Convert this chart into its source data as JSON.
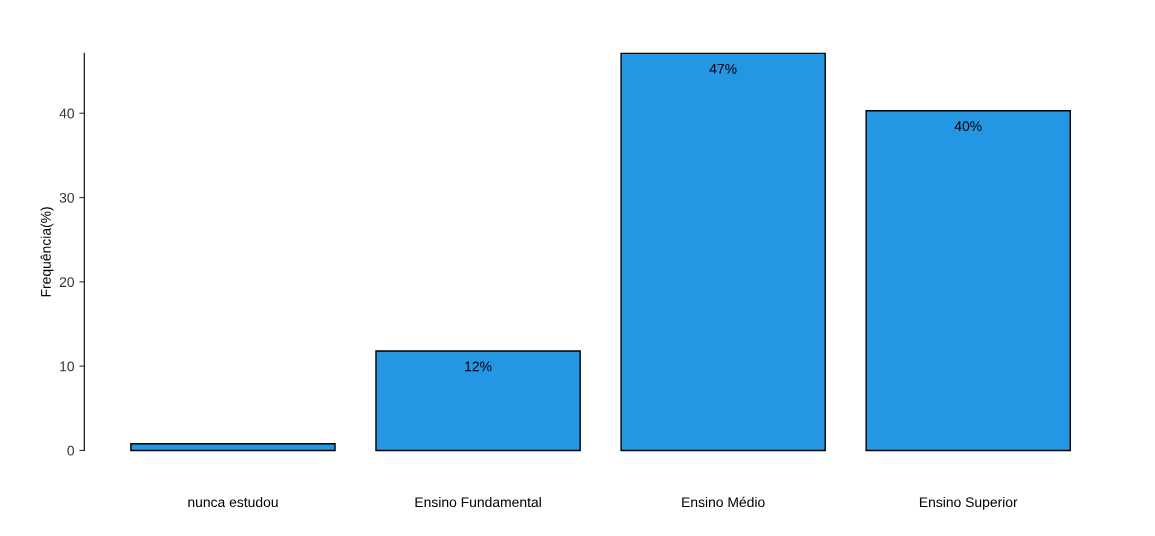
{
  "chart_data": {
    "type": "bar",
    "ylabel": "Frequência(%)",
    "categories": [
      "nunca estudou",
      "Ensino Fundamental",
      "Ensino Médio",
      "Ensino Superior"
    ],
    "values": [
      0.8,
      11.8,
      47.1,
      40.3
    ],
    "value_labels": [
      null,
      "12%",
      "47%",
      "40%"
    ],
    "color": "#2396e4",
    "ylim": [
      0,
      47.1
    ],
    "yticks": [
      0,
      10,
      20,
      30,
      40
    ],
    "grid": false
  }
}
